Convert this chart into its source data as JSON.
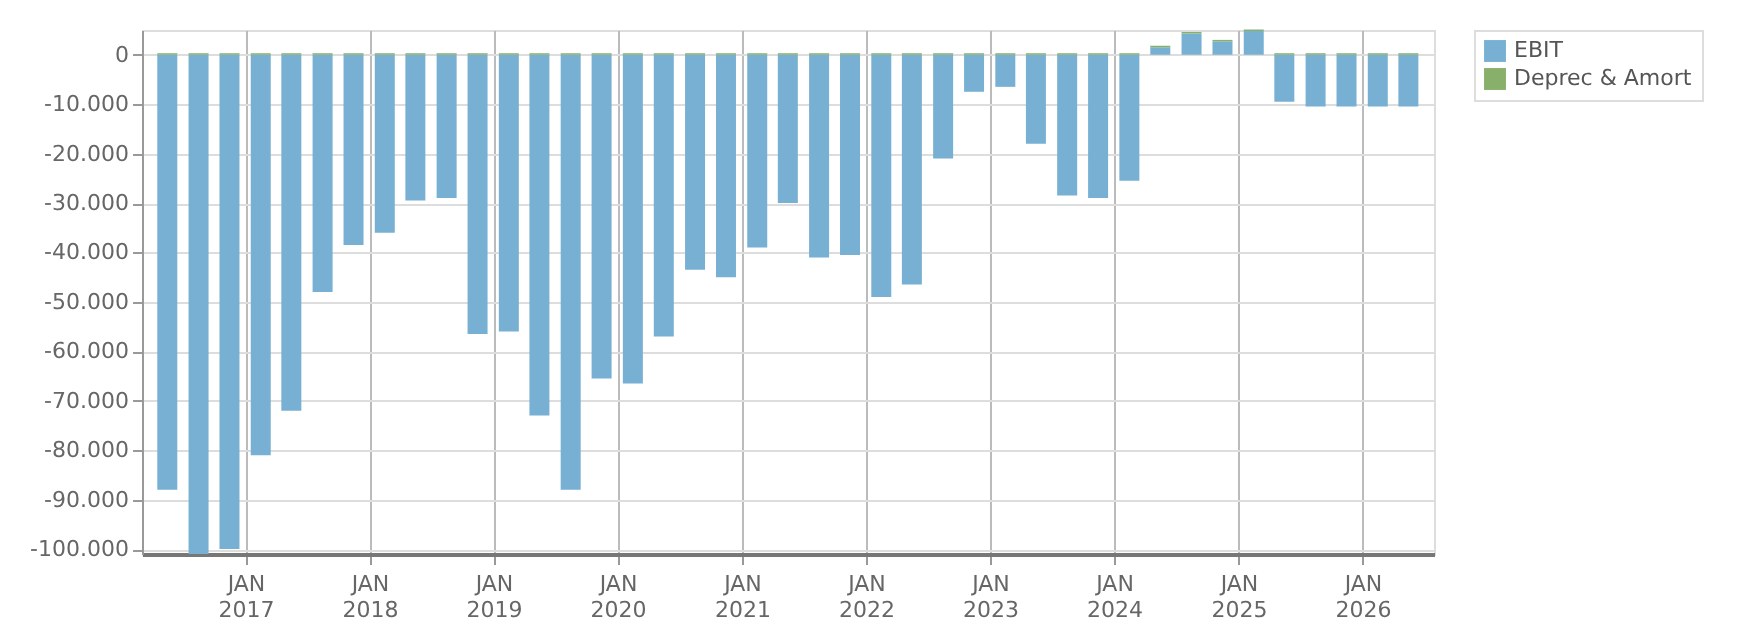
{
  "chart_data": {
    "type": "bar",
    "stacked": true,
    "x": [
      "2016-05-16",
      "2016-08-16",
      "2016-11-15",
      "2017-02-15",
      "2017-05-16",
      "2017-08-16",
      "2017-11-15",
      "2018-02-15",
      "2018-05-16",
      "2018-08-16",
      "2018-11-15",
      "2019-02-15",
      "2019-05-16",
      "2019-08-16",
      "2019-11-15",
      "2020-02-15",
      "2020-05-16",
      "2020-08-16",
      "2020-11-15",
      "2021-02-15",
      "2021-05-16",
      "2021-08-16",
      "2021-11-15",
      "2022-02-15",
      "2022-05-16",
      "2022-08-16",
      "2022-11-15",
      "2023-02-15",
      "2023-05-16",
      "2023-08-16",
      "2023-11-15",
      "2024-02-15",
      "2024-05-16",
      "2024-08-16",
      "2024-11-15",
      "2025-02-15",
      "2025-05-16",
      "2025-08-16",
      "2025-11-15",
      "2026-02-15",
      "2026-05-16"
    ],
    "series": [
      {
        "name": "EBIT",
        "color": "#77b0d3",
        "values": [
          -88000,
          -101000,
          -100000,
          -81000,
          -72000,
          -48000,
          -38500,
          -36000,
          -29500,
          -29000,
          -56500,
          -56000,
          -73000,
          -88000,
          -65500,
          -66500,
          -57000,
          -43500,
          -45000,
          -39000,
          -30000,
          -41000,
          -40500,
          -49000,
          -46500,
          -21000,
          -7500,
          -6500,
          -18000,
          -28500,
          -29000,
          -25500,
          1500,
          4300,
          2700,
          4800,
          -9500,
          -10500,
          -10500,
          -10500,
          -10500
        ]
      },
      {
        "name": "Deprec & Amort",
        "color": "#88b06a",
        "values": [
          300,
          300,
          300,
          300,
          300,
          300,
          300,
          300,
          300,
          300,
          300,
          300,
          300,
          300,
          300,
          300,
          300,
          300,
          300,
          300,
          300,
          300,
          300,
          300,
          300,
          300,
          300,
          300,
          300,
          300,
          300,
          300,
          300,
          300,
          300,
          300,
          300,
          300,
          300,
          300,
          300
        ]
      }
    ],
    "xlim": [
      "2016-04-01",
      "2026-07-01"
    ],
    "xticks": [
      {
        "value": "2017-01-01",
        "label": "JAN\n2017"
      },
      {
        "value": "2018-01-01",
        "label": "JAN\n2018"
      },
      {
        "value": "2019-01-01",
        "label": "JAN\n2019"
      },
      {
        "value": "2020-01-01",
        "label": "JAN\n2020"
      },
      {
        "value": "2021-01-01",
        "label": "JAN\n2021"
      },
      {
        "value": "2022-01-01",
        "label": "JAN\n2022"
      },
      {
        "value": "2023-01-01",
        "label": "JAN\n2023"
      },
      {
        "value": "2024-01-01",
        "label": "JAN\n2024"
      },
      {
        "value": "2025-01-01",
        "label": "JAN\n2025"
      },
      {
        "value": "2026-01-01",
        "label": "JAN\n2026"
      }
    ],
    "ylim": [
      -101000,
      5000
    ],
    "yticks": [
      {
        "value": -100000,
        "label": "-100.000"
      },
      {
        "value": -90000,
        "label": "-90.000"
      },
      {
        "value": -80000,
        "label": "-80.000"
      },
      {
        "value": -70000,
        "label": "-70.000"
      },
      {
        "value": -60000,
        "label": "-60.000"
      },
      {
        "value": -50000,
        "label": "-50.000"
      },
      {
        "value": -40000,
        "label": "-40.000"
      },
      {
        "value": -30000,
        "label": "-30.000"
      },
      {
        "value": -20000,
        "label": "-20.000"
      },
      {
        "value": -10000,
        "label": "-10.000"
      },
      {
        "value": 0,
        "label": "0"
      }
    ],
    "grid": true,
    "legend": "top right"
  }
}
